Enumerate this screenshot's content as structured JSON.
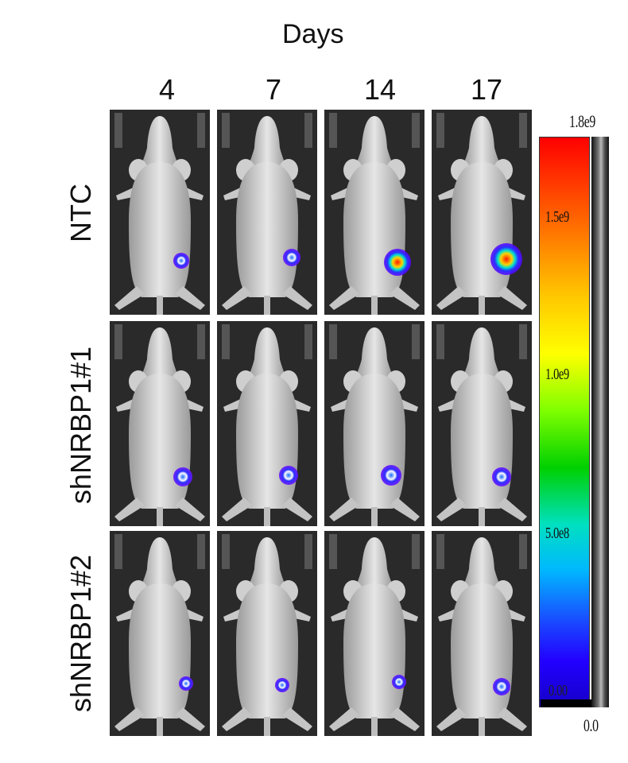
{
  "title": "Days",
  "days": [
    "4",
    "7",
    "14",
    "17"
  ],
  "rows": [
    "NTC",
    "shNRBP1#1",
    "shNRBP1#2"
  ],
  "scale": {
    "labels": [
      "1.8e9",
      "1.5e9",
      "1.0e9",
      "5.0e8",
      "0.00",
      "0.0"
    ]
  },
  "colors": {
    "background": "#ffffff",
    "panel": "#2b2b2b",
    "signal_high": "#ff0000",
    "signal_low": "#2200ff"
  }
}
